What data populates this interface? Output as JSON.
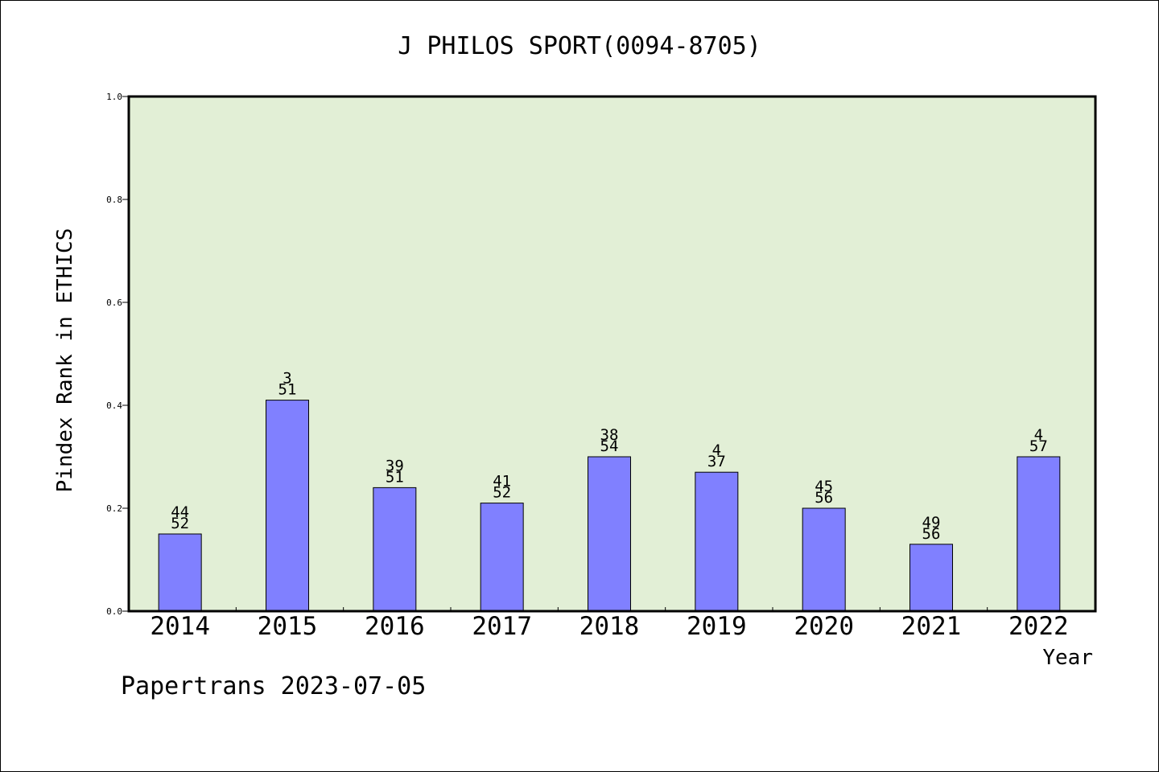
{
  "chart_data": {
    "type": "bar",
    "title": "J PHILOS SPORT(0094-8705)",
    "xlabel": "Year",
    "ylabel": "Pindex Rank in ETHICS",
    "ylim": [
      0,
      1.0
    ],
    "yticks": [
      "0.0",
      "0.2",
      "0.4",
      "0.6",
      "0.8",
      "1.0"
    ],
    "categories": [
      "2014",
      "2015",
      "2016",
      "2017",
      "2018",
      "2019",
      "2020",
      "2021",
      "2022"
    ],
    "values": [
      0.15,
      0.41,
      0.24,
      0.21,
      0.3,
      0.27,
      0.2,
      0.13,
      0.3
    ],
    "rank_labels": [
      "44",
      "3",
      "39",
      "41",
      "38",
      "4",
      "45",
      "49",
      "4"
    ],
    "total_labels": [
      "52",
      "51",
      "51",
      "52",
      "54",
      "37",
      "56",
      "56",
      "57"
    ],
    "grid": false,
    "colors": {
      "plot_background": "#e2efd6",
      "bar_fill": "#8080ff",
      "bar_stroke": "#000000"
    }
  },
  "footer": {
    "text": "Papertrans 2023-07-05"
  }
}
